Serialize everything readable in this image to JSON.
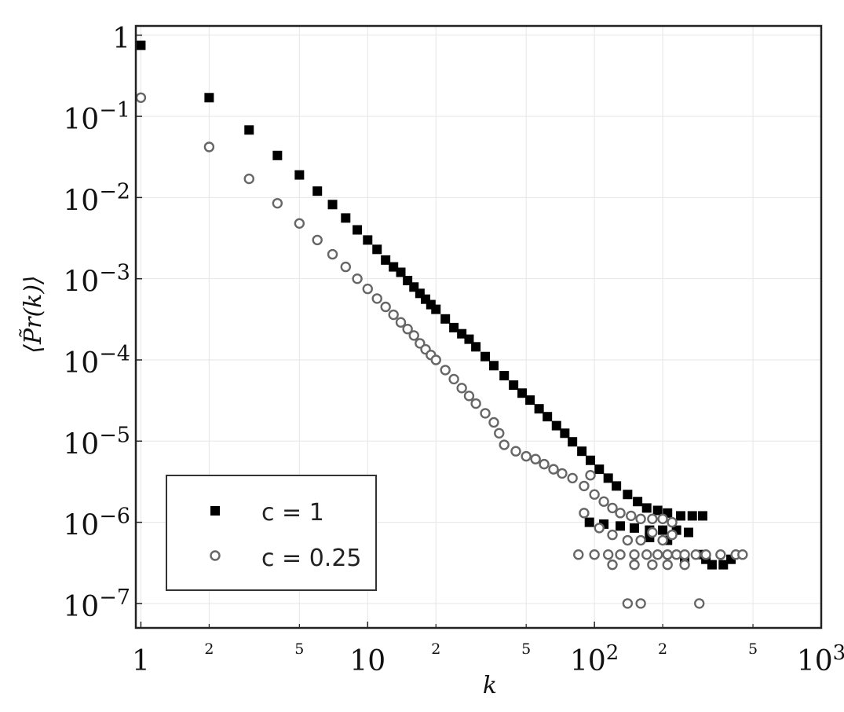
{
  "chart_data": {
    "type": "scatter",
    "title": "",
    "xlabel": "k",
    "ylabel": "⟨P̃r(k)⟩",
    "xscale": "log",
    "yscale": "log",
    "xlim": [
      0.95,
      1000
    ],
    "ylim": [
      5e-08,
      1.3
    ],
    "grid": true,
    "legend_position": "lower-left",
    "x_major_ticks": [
      {
        "value": 1,
        "base": "1",
        "exp": ""
      },
      {
        "value": 10,
        "base": "10",
        "exp": ""
      },
      {
        "value": 100,
        "base": "10",
        "exp": "2"
      },
      {
        "value": 1000,
        "base": "10",
        "exp": "3"
      }
    ],
    "x_minor_ticks": [
      {
        "value": 2,
        "label": "2"
      },
      {
        "value": 5,
        "label": "5"
      },
      {
        "value": 20,
        "label": "2"
      },
      {
        "value": 50,
        "label": "5"
      },
      {
        "value": 200,
        "label": "2"
      },
      {
        "value": 500,
        "label": "5"
      }
    ],
    "y_ticks": [
      {
        "value": 1,
        "base": "1",
        "exp": ""
      },
      {
        "value": 0.1,
        "base": "10",
        "exp": "−1"
      },
      {
        "value": 0.01,
        "base": "10",
        "exp": "−2"
      },
      {
        "value": 0.001,
        "base": "10",
        "exp": "−3"
      },
      {
        "value": 0.0001,
        "base": "10",
        "exp": "−4"
      },
      {
        "value": 1e-05,
        "base": "10",
        "exp": "−5"
      },
      {
        "value": 1e-06,
        "base": "10",
        "exp": "−6"
      },
      {
        "value": 1e-07,
        "base": "10",
        "exp": "−7"
      }
    ],
    "series": [
      {
        "name": "c = 1",
        "marker": "filled-square",
        "color": "#000000",
        "points": [
          [
            1,
            0.75
          ],
          [
            2,
            0.17
          ],
          [
            3,
            0.068
          ],
          [
            4,
            0.033
          ],
          [
            5,
            0.019
          ],
          [
            6,
            0.012
          ],
          [
            7,
            0.0082
          ],
          [
            8,
            0.0056
          ],
          [
            9,
            0.004
          ],
          [
            10,
            0.003
          ],
          [
            11,
            0.0023
          ],
          [
            12,
            0.0017
          ],
          [
            13,
            0.0014
          ],
          [
            14,
            0.0012
          ],
          [
            15,
            0.00095
          ],
          [
            16,
            0.00079
          ],
          [
            17,
            0.00066
          ],
          [
            18,
            0.00056
          ],
          [
            19,
            0.00048
          ],
          [
            20,
            0.00042
          ],
          [
            22,
            0.00032
          ],
          [
            24,
            0.00025
          ],
          [
            26,
            0.00021
          ],
          [
            28,
            0.00018
          ],
          [
            30,
            0.000145
          ],
          [
            33,
            0.00011
          ],
          [
            36,
            8.5e-05
          ],
          [
            40,
            6.4e-05
          ],
          [
            44,
            4.9e-05
          ],
          [
            48,
            3.9e-05
          ],
          [
            52,
            3.2e-05
          ],
          [
            57,
            2.5e-05
          ],
          [
            62,
            2e-05
          ],
          [
            68,
            1.55e-05
          ],
          [
            74,
            1.25e-05
          ],
          [
            80,
            9.8e-06
          ],
          [
            88,
            7.5e-06
          ],
          [
            96,
            5.8e-06
          ],
          [
            105,
            4.5e-06
          ],
          [
            115,
            3.5e-06
          ],
          [
            125,
            2.8e-06
          ],
          [
            140,
            2.2e-06
          ],
          [
            155,
            1.8e-06
          ],
          [
            170,
            1.5e-06
          ],
          [
            190,
            1.4e-06
          ],
          [
            210,
            1.3e-06
          ],
          [
            240,
            1.2e-06
          ],
          [
            270,
            1.2e-06
          ],
          [
            300,
            1.2e-06
          ],
          [
            95,
            1e-06
          ],
          [
            110,
            9.5e-07
          ],
          [
            130,
            9e-07
          ],
          [
            150,
            8.5e-07
          ],
          [
            175,
            8e-07
          ],
          [
            200,
            8e-07
          ],
          [
            230,
            8e-07
          ],
          [
            260,
            7.5e-07
          ],
          [
            175,
            6.5e-07
          ],
          [
            210,
            6e-07
          ],
          [
            250,
            3.5e-07
          ],
          [
            290,
            4e-07
          ],
          [
            310,
            3.5e-07
          ],
          [
            330,
            3e-07
          ],
          [
            370,
            3e-07
          ],
          [
            400,
            3.5e-07
          ]
        ]
      },
      {
        "name": "c = 0.25",
        "marker": "open-circle",
        "color": "#666666",
        "points": [
          [
            1,
            0.17
          ],
          [
            2,
            0.042
          ],
          [
            3,
            0.017
          ],
          [
            4,
            0.0085
          ],
          [
            5,
            0.0048
          ],
          [
            6,
            0.003
          ],
          [
            7,
            0.002
          ],
          [
            8,
            0.0014
          ],
          [
            9,
            0.001
          ],
          [
            10,
            0.00075
          ],
          [
            11,
            0.00057
          ],
          [
            12,
            0.00045
          ],
          [
            13,
            0.00036
          ],
          [
            14,
            0.00029
          ],
          [
            15,
            0.00024
          ],
          [
            16,
            0.0002
          ],
          [
            17,
            0.00016
          ],
          [
            18,
            0.000135
          ],
          [
            19,
            0.000115
          ],
          [
            20,
            0.0001
          ],
          [
            22,
            7.5e-05
          ],
          [
            24,
            5.8e-05
          ],
          [
            26,
            4.5e-05
          ],
          [
            28,
            3.6e-05
          ],
          [
            30,
            2.9e-05
          ],
          [
            33,
            2.2e-05
          ],
          [
            36,
            1.7e-05
          ],
          [
            38,
            1.25e-05
          ],
          [
            40,
            9e-06
          ],
          [
            45,
            7.5e-06
          ],
          [
            50,
            6.5e-06
          ],
          [
            55,
            6e-06
          ],
          [
            60,
            5.2e-06
          ],
          [
            66,
            4.5e-06
          ],
          [
            72,
            4e-06
          ],
          [
            80,
            3.5e-06
          ],
          [
            90,
            2.8e-06
          ],
          [
            96,
            3.8e-06
          ],
          [
            100,
            2.2e-06
          ],
          [
            110,
            1.8e-06
          ],
          [
            120,
            1.5e-06
          ],
          [
            130,
            1.3e-06
          ],
          [
            145,
            1.2e-06
          ],
          [
            160,
            1.1e-06
          ],
          [
            180,
            1.1e-06
          ],
          [
            200,
            1.1e-06
          ],
          [
            220,
            1e-06
          ],
          [
            90,
            1.3e-06
          ],
          [
            105,
            8.5e-07
          ],
          [
            120,
            7e-07
          ],
          [
            140,
            6e-07
          ],
          [
            160,
            6e-07
          ],
          [
            180,
            7.5e-07
          ],
          [
            200,
            6e-07
          ],
          [
            220,
            7e-07
          ],
          [
            85,
            4e-07
          ],
          [
            100,
            4e-07
          ],
          [
            115,
            4e-07
          ],
          [
            130,
            4e-07
          ],
          [
            150,
            4e-07
          ],
          [
            170,
            4e-07
          ],
          [
            190,
            4e-07
          ],
          [
            210,
            4e-07
          ],
          [
            230,
            4e-07
          ],
          [
            250,
            4e-07
          ],
          [
            280,
            4e-07
          ],
          [
            310,
            4e-07
          ],
          [
            360,
            4e-07
          ],
          [
            420,
            4e-07
          ],
          [
            450,
            4e-07
          ],
          [
            120,
            3e-07
          ],
          [
            150,
            3e-07
          ],
          [
            180,
            3e-07
          ],
          [
            210,
            3e-07
          ],
          [
            250,
            3e-07
          ],
          [
            140,
            1e-07
          ],
          [
            160,
            1e-07
          ],
          [
            290,
            1e-07
          ]
        ]
      }
    ]
  }
}
